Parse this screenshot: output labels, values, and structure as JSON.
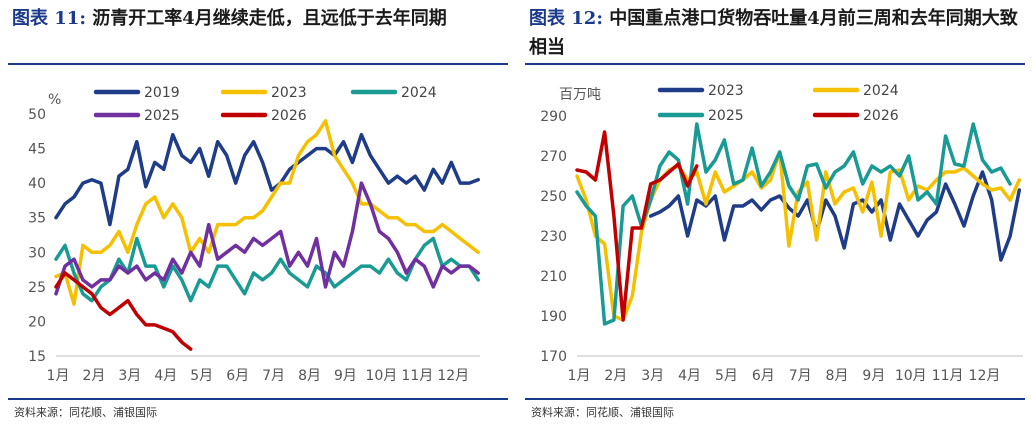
{
  "charts": [
    {
      "title_prefix": "图表",
      "title_num": "11:",
      "title_text": "沥青开工率4月继续走低，且远低于去年同期",
      "source": "资料来源：同花顺、浦银国际",
      "unit": "%",
      "ylim": [
        15,
        50
      ],
      "yticks": [
        "15",
        "20",
        "25",
        "30",
        "35",
        "40",
        "45",
        "50"
      ],
      "xticks": [
        "1月",
        "2月",
        "3月",
        "4月",
        "5月",
        "6月",
        "7月",
        "8月",
        "9月",
        "10月",
        "11月",
        "12月"
      ]
    },
    {
      "title_prefix": "图表",
      "title_num": "12:",
      "title_text": "中国重点港口货物吞吐量4月前三周和去年同期大致相当",
      "source": "资料来源：同花顺、浦银国际",
      "unit": "百万吨",
      "ylim": [
        170,
        290
      ],
      "yticks": [
        "170",
        "190",
        "210",
        "230",
        "250",
        "270",
        "290"
      ],
      "xticks": [
        "1月",
        "2月",
        "3月",
        "4月",
        "5月",
        "6月",
        "7月",
        "8月",
        "9月",
        "10月",
        "11月",
        "12月"
      ]
    }
  ],
  "chart_data": [
    {
      "type": "line",
      "title": "沥青开工率4月继续走低，且远低于去年同期",
      "ylabel": "%",
      "ylim": [
        15,
        50
      ],
      "x_range": [
        1,
        12.8
      ],
      "categories": [
        "1月",
        "2月",
        "3月",
        "4月",
        "5月",
        "6月",
        "7月",
        "8月",
        "9月",
        "10月",
        "11月",
        "12月"
      ],
      "legend_position": "top",
      "series": [
        {
          "name": "2019",
          "color": "#1f3c88",
          "x": [
            1.0,
            1.25,
            1.5,
            1.75,
            2.0,
            2.25,
            2.5,
            2.75,
            3.0,
            3.25,
            3.5,
            3.75,
            4.0,
            4.25,
            4.5,
            4.75,
            5.0,
            5.25,
            5.5,
            5.75,
            6.0,
            6.25,
            6.5,
            6.75,
            7.0,
            7.25,
            7.5,
            7.75,
            8.0,
            8.25,
            8.5,
            8.75,
            9.0,
            9.25,
            9.5,
            9.75,
            10.0,
            10.25,
            10.5,
            10.75,
            11.0,
            11.25,
            11.5,
            11.75,
            12.0,
            12.25,
            12.5,
            12.75
          ],
          "y": [
            35,
            37,
            38,
            40,
            40.5,
            40,
            34,
            41,
            42,
            46,
            39.5,
            43,
            42,
            47,
            44,
            43,
            45,
            41,
            46,
            44,
            40,
            44,
            46,
            43,
            39,
            40,
            42,
            43,
            44,
            45,
            45,
            44,
            46,
            43,
            47,
            44,
            42,
            40,
            41,
            40,
            41,
            39,
            42,
            40,
            43,
            40,
            40,
            40.5
          ]
        },
        {
          "name": "2023",
          "color": "#f5c000",
          "x": [
            1.0,
            1.25,
            1.5,
            1.75,
            2.0,
            2.25,
            2.5,
            2.75,
            3.0,
            3.25,
            3.5,
            3.75,
            4.0,
            4.25,
            4.5,
            4.75,
            5.0,
            5.25,
            5.5,
            5.75,
            6.0,
            6.25,
            6.5,
            6.75,
            7.0,
            7.25,
            7.5,
            7.75,
            8.0,
            8.25,
            8.5,
            8.75,
            9.0,
            9.25,
            9.5,
            9.75,
            10.0,
            10.25,
            10.5,
            10.75,
            11.0,
            11.25,
            11.5,
            11.75,
            12.0,
            12.25,
            12.5,
            12.75
          ],
          "y": [
            26.5,
            27,
            22.5,
            31,
            30,
            30,
            31,
            33,
            30,
            34,
            37,
            38,
            35,
            37,
            35,
            30,
            32,
            30,
            34,
            34,
            34,
            35,
            35,
            36,
            38,
            40,
            40,
            44,
            46,
            47,
            49,
            44,
            42,
            40,
            37,
            37,
            36,
            35,
            35,
            34,
            34,
            33,
            33,
            34,
            33,
            32,
            31,
            30
          ]
        },
        {
          "name": "2024",
          "color": "#1a9a94",
          "x": [
            1.0,
            1.25,
            1.5,
            1.75,
            2.0,
            2.25,
            2.5,
            2.75,
            3.0,
            3.25,
            3.5,
            3.75,
            4.0,
            4.25,
            4.5,
            4.75,
            5.0,
            5.25,
            5.5,
            5.75,
            6.0,
            6.25,
            6.5,
            6.75,
            7.0,
            7.25,
            7.5,
            7.75,
            8.0,
            8.25,
            8.5,
            8.75,
            9.0,
            9.25,
            9.5,
            9.75,
            10.0,
            10.25,
            10.5,
            10.75,
            11.0,
            11.25,
            11.5,
            11.75,
            12.0,
            12.25,
            12.5,
            12.75
          ],
          "y": [
            29,
            31,
            27,
            24,
            23,
            25,
            26,
            29,
            27,
            32,
            28,
            28,
            25,
            28,
            26,
            23,
            26,
            25,
            28,
            28,
            26,
            24,
            27,
            26,
            27,
            29,
            27,
            26,
            25,
            28,
            27,
            25,
            26,
            27,
            28,
            28,
            27,
            29,
            27,
            26,
            29,
            31,
            32,
            28,
            29,
            28,
            28,
            26
          ]
        },
        {
          "name": "2025",
          "color": "#7030a0",
          "x": [
            1.0,
            1.25,
            1.5,
            1.75,
            2.0,
            2.25,
            2.5,
            2.75,
            3.0,
            3.25,
            3.5,
            3.75,
            4.0,
            4.25,
            4.5,
            4.75,
            5.0,
            5.25,
            5.5,
            5.75,
            6.0,
            6.25,
            6.5,
            6.75,
            7.0,
            7.25,
            7.5,
            7.75,
            8.0,
            8.25,
            8.5,
            8.75,
            9.0,
            9.25,
            9.5,
            9.75,
            10.0,
            10.25,
            10.5,
            10.75,
            11.0,
            11.25,
            11.5,
            11.75,
            12.0,
            12.25,
            12.5,
            12.75
          ],
          "y": [
            24,
            28,
            29,
            26,
            25,
            26,
            26,
            28,
            27,
            28,
            26,
            27,
            26,
            29,
            27,
            30,
            28,
            34,
            29,
            30,
            31,
            30,
            32,
            31,
            32,
            33,
            28,
            30,
            28,
            32,
            25,
            30,
            28,
            33,
            40,
            37,
            33,
            32,
            30,
            27,
            29,
            28,
            25,
            28,
            27,
            28,
            28,
            27
          ]
        },
        {
          "name": "2026",
          "color": "#c00000",
          "x": [
            1.0,
            1.25,
            1.5,
            1.75,
            2.0,
            2.25,
            2.5,
            2.75,
            3.0,
            3.25,
            3.5,
            3.75,
            4.0,
            4.25,
            4.5,
            4.75
          ],
          "y": [
            25,
            27,
            26,
            25,
            24,
            22,
            21,
            22,
            23,
            21,
            19.5,
            19.5,
            19,
            18.5,
            17,
            16
          ]
        }
      ]
    },
    {
      "type": "line",
      "title": "中国重点港口货物吞吐量4月前三周和去年同期大致相当",
      "ylabel": "百万吨",
      "ylim": [
        170,
        290
      ],
      "x_range": [
        1,
        13.1
      ],
      "categories": [
        "1月",
        "2月",
        "3月",
        "4月",
        "5月",
        "6月",
        "7月",
        "8月",
        "9月",
        "10月",
        "11月",
        "12月"
      ],
      "legend_position": "top",
      "series": [
        {
          "name": "2023",
          "color": "#1f3c88",
          "x": [
            3.0,
            3.25,
            3.5,
            3.75,
            4.0,
            4.25,
            4.5,
            4.75,
            5.0,
            5.25,
            5.5,
            5.75,
            6.0,
            6.25,
            6.5,
            6.75,
            7.0,
            7.25,
            7.5,
            7.75,
            8.0,
            8.25,
            8.5,
            8.75,
            9.0,
            9.25,
            9.5,
            9.75,
            10.0,
            10.25,
            10.5,
            10.75,
            11.0,
            11.25,
            11.5,
            11.75,
            12.0,
            12.25,
            12.5,
            12.75,
            13.0
          ],
          "y": [
            240,
            242,
            245,
            250,
            230,
            248,
            245,
            250,
            228,
            245,
            245,
            248,
            243,
            248,
            250,
            244,
            240,
            248,
            232,
            248,
            240,
            224,
            246,
            248,
            242,
            248,
            228,
            246,
            238,
            230,
            238,
            242,
            256,
            246,
            235,
            250,
            262,
            248,
            218,
            230,
            253
          ]
        },
        {
          "name": "2024",
          "color": "#f5c000",
          "x": [
            1.0,
            1.25,
            1.5,
            1.75,
            2.0,
            2.25,
            2.5,
            2.75,
            3.0,
            3.25,
            3.5,
            3.75,
            4.0,
            4.25,
            4.5,
            4.75,
            5.0,
            5.25,
            5.5,
            5.75,
            6.0,
            6.25,
            6.5,
            6.75,
            7.0,
            7.25,
            7.5,
            7.75,
            8.0,
            8.25,
            8.5,
            8.75,
            9.0,
            9.25,
            9.5,
            9.75,
            10.0,
            10.25,
            10.5,
            10.75,
            11.0,
            11.25,
            11.5,
            11.75,
            12.0,
            12.25,
            12.5,
            12.75,
            13.0
          ],
          "y": [
            260,
            248,
            230,
            226,
            190,
            188,
            200,
            232,
            248,
            258,
            263,
            265,
            258,
            262,
            246,
            262,
            252,
            255,
            258,
            262,
            254,
            258,
            272,
            225,
            252,
            257,
            228,
            262,
            246,
            252,
            254,
            242,
            257,
            230,
            262,
            263,
            248,
            255,
            253,
            258,
            262,
            262,
            264,
            260,
            256,
            253,
            254,
            248,
            258
          ]
        },
        {
          "name": "2025",
          "color": "#1a9a94",
          "x": [
            1.0,
            1.25,
            1.5,
            1.75,
            2.0,
            2.25,
            2.5,
            2.75,
            3.0,
            3.25,
            3.5,
            3.75,
            4.0,
            4.25,
            4.5,
            4.75,
            5.0,
            5.25,
            5.5,
            5.75,
            6.0,
            6.25,
            6.5,
            6.75,
            7.0,
            7.25,
            7.5,
            7.75,
            8.0,
            8.25,
            8.5,
            8.75,
            9.0,
            9.25,
            9.5,
            9.75,
            10.0,
            10.25,
            10.5,
            10.75,
            11.0,
            11.25,
            11.5,
            11.75,
            12.0,
            12.25,
            12.5,
            12.75
          ],
          "y": [
            252,
            245,
            240,
            186,
            188,
            245,
            250,
            235,
            248,
            265,
            272,
            268,
            246,
            286,
            262,
            268,
            278,
            256,
            258,
            274,
            255,
            262,
            272,
            255,
            248,
            265,
            266,
            254,
            262,
            265,
            272,
            256,
            265,
            262,
            265,
            260,
            270,
            248,
            252,
            246,
            280,
            266,
            265,
            286,
            268,
            262,
            264,
            256
          ]
        },
        {
          "name": "2026",
          "color": "#c00000",
          "x": [
            1.0,
            1.25,
            1.5,
            1.75,
            2.0,
            2.25,
            2.5,
            2.75,
            3.0,
            3.25,
            3.5,
            3.75,
            4.0,
            4.25
          ],
          "y": [
            263,
            262,
            258,
            282,
            240,
            188,
            234,
            234,
            256,
            258,
            262,
            266,
            255,
            265
          ]
        }
      ]
    }
  ]
}
